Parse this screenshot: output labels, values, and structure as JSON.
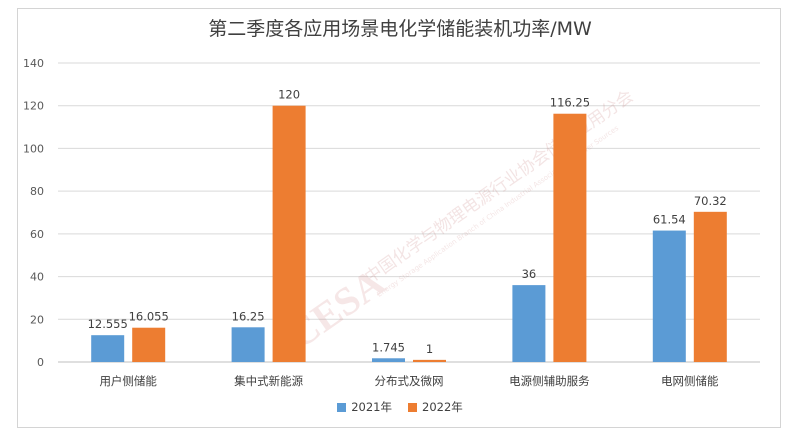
{
  "chart_data": {
    "type": "bar",
    "title": "第二季度各应用场景电化学储能装机功率/MW",
    "categories": [
      "用户侧储能",
      "集中式新能源",
      "分布式及微网",
      "电源侧辅助服务",
      "电网侧储能"
    ],
    "series": [
      {
        "name": "2021年",
        "color": "#5B9BD5",
        "values": [
          12.555,
          16.25,
          1.745,
          36,
          61.54
        ],
        "labels": [
          "12.555",
          "16.25",
          "1.745",
          "36",
          "61.54"
        ]
      },
      {
        "name": "2022年",
        "color": "#ED7D31",
        "values": [
          16.055,
          120,
          1,
          116.25,
          70.32
        ],
        "labels": [
          "16.055",
          "120",
          "1",
          "116.25",
          "70.32"
        ]
      }
    ],
    "ylim": [
      0,
      140
    ],
    "yticks": [
      0,
      20,
      40,
      60,
      80,
      100,
      120,
      140
    ],
    "grid": true,
    "legend": "bottom"
  },
  "watermark": {
    "logo": "CESA",
    "cn": "中国化学与物理电源行业协会储能应用分会",
    "en": "Energy Storage Application Branch of China Industrial Association of Power Sources"
  },
  "colors": {
    "axis": "#d9d9d9",
    "grid": "#d9d9d9",
    "text": "#404040"
  }
}
